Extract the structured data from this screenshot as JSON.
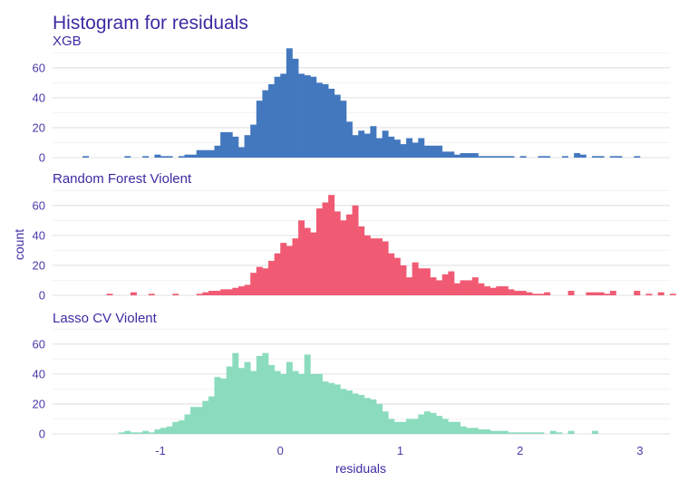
{
  "chart_data": {
    "type": "bar",
    "title": "Histogram for residuals",
    "xlabel": "residuals",
    "ylabel": "count",
    "xlim": [
      -1.9,
      3.25
    ],
    "x_ticks": [
      -1,
      0,
      1,
      2,
      3
    ],
    "ylim": [
      0,
      75
    ],
    "y_ticks": [
      0,
      20,
      40,
      60
    ],
    "bin_width": 0.05,
    "grid": true,
    "legend": "none",
    "panels": [
      {
        "name": "XGB",
        "color": "#4378bf",
        "x_start": -1.65,
        "values": [
          1,
          0,
          0,
          0,
          0,
          0,
          0,
          1,
          0,
          0,
          1,
          0,
          2,
          1,
          1,
          0,
          1,
          2,
          2,
          5,
          5,
          5,
          8,
          17,
          17,
          14,
          7,
          15,
          22,
          38,
          45,
          49,
          54,
          56,
          73,
          66,
          56,
          55,
          54,
          50,
          49,
          46,
          42,
          38,
          24,
          15,
          18,
          16,
          21,
          13,
          18,
          14,
          12,
          9,
          13,
          10,
          13,
          8,
          8,
          8,
          4,
          4,
          2,
          3,
          3,
          3,
          1,
          1,
          1,
          1,
          1,
          1,
          0,
          1,
          0,
          0,
          1,
          1,
          0,
          0,
          1,
          0,
          3,
          2,
          0,
          1,
          1,
          0,
          1,
          1,
          0,
          0,
          1
        ]
      },
      {
        "name": "Random Forest Violent",
        "color": "#f05a73",
        "x_start": -1.5,
        "values": [
          0,
          1,
          0,
          0,
          0,
          2,
          0,
          0,
          1,
          0,
          0,
          0,
          1,
          0,
          0,
          0,
          1,
          2,
          3,
          3,
          4,
          4,
          5,
          6,
          7,
          15,
          19,
          18,
          23,
          28,
          35,
          33,
          38,
          50,
          45,
          42,
          58,
          62,
          67,
          56,
          50,
          54,
          60,
          46,
          40,
          38,
          38,
          36,
          28,
          25,
          20,
          12,
          22,
          18,
          18,
          12,
          10,
          14,
          16,
          8,
          10,
          10,
          12,
          8,
          6,
          5,
          6,
          6,
          4,
          3,
          3,
          2,
          1,
          1,
          2,
          0,
          0,
          0,
          3,
          0,
          0,
          2,
          2,
          2,
          1,
          3,
          0,
          0,
          0,
          3,
          0,
          1,
          0,
          2,
          0,
          1,
          0,
          0,
          0,
          0,
          2,
          0,
          0,
          0,
          1,
          0,
          0,
          0,
          1
        ]
      },
      {
        "name": "Lasso CV Violent",
        "color": "#8adcbd",
        "x_start": -1.35,
        "values": [
          1,
          2,
          1,
          1,
          2,
          1,
          3,
          4,
          5,
          8,
          9,
          13,
          18,
          18,
          22,
          25,
          38,
          37,
          45,
          54,
          44,
          48,
          42,
          52,
          54,
          46,
          42,
          40,
          48,
          42,
          40,
          53,
          40,
          40,
          35,
          34,
          33,
          30,
          29,
          27,
          26,
          24,
          23,
          20,
          15,
          10,
          8,
          8,
          10,
          10,
          13,
          15,
          14,
          12,
          10,
          8,
          8,
          5,
          4,
          4,
          3,
          3,
          2,
          2,
          2,
          1,
          1,
          1,
          1,
          1,
          1,
          0,
          2,
          1,
          0,
          2,
          0,
          0,
          0,
          2,
          0,
          0,
          0,
          0,
          0,
          0,
          0,
          0,
          0,
          0,
          0,
          0,
          0,
          0,
          0,
          0,
          1,
          0,
          0,
          0,
          0,
          0,
          0,
          0,
          0,
          0,
          0,
          0,
          0,
          0,
          0,
          0,
          0,
          0,
          0,
          0,
          0,
          0,
          0,
          0,
          0,
          0,
          0,
          0,
          0,
          0,
          0,
          0,
          0,
          0,
          0,
          0,
          0,
          0,
          0,
          0,
          0,
          0,
          0,
          0,
          0,
          0,
          0,
          0,
          0,
          0,
          0,
          0,
          0,
          0,
          1
        ]
      }
    ]
  }
}
